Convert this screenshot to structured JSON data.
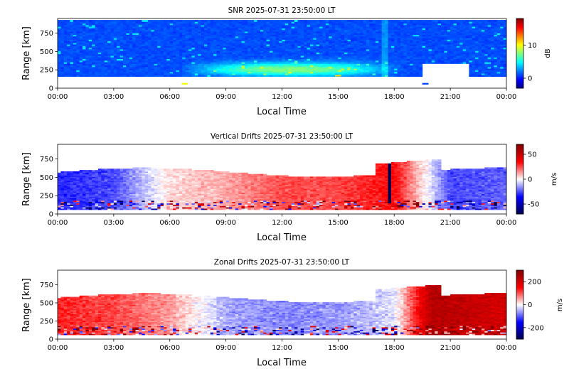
{
  "chart_data": [
    {
      "type": "heatmap",
      "title": "SNR 2025-07-31 23:50:00 LT",
      "xlabel": "Local Time",
      "ylabel": "Range [km]",
      "x_ticks": [
        "00:00",
        "03:00",
        "06:00",
        "09:00",
        "12:00",
        "15:00",
        "18:00",
        "21:00",
        "00:00"
      ],
      "xlim_hours": [
        0,
        24
      ],
      "y_ticks": [
        0,
        250,
        500,
        750
      ],
      "ylim": [
        0,
        950
      ],
      "colormap": "jet",
      "colorbar": {
        "label": "dB",
        "range": [
          -3,
          18
        ],
        "ticks": [
          0,
          10
        ]
      },
      "valid_range_km": [
        160,
        930
      ],
      "summary": "Mostly 0–3 dB across range; enhanced band of 6–9 dB near 170–450 km between 07:00 and 18:00; data gap below ~330 km from 19:30 to 22:00.",
      "notable_cells": [
        {
          "time": "06:48",
          "range_km": 60,
          "snr_db": 10
        },
        {
          "time": "19:40",
          "range_km": 60,
          "snr_db": 1
        },
        {
          "time": "15:00",
          "range_km": 170,
          "snr_db": 11
        }
      ]
    },
    {
      "type": "heatmap",
      "title": "Vertical Drifts 2025-07-31 23:50:00 LT",
      "xlabel": "Local Time",
      "ylabel": "Range [km]",
      "x_ticks": [
        "00:00",
        "03:00",
        "06:00",
        "09:00",
        "12:00",
        "15:00",
        "18:00",
        "21:00",
        "00:00"
      ],
      "xlim_hours": [
        0,
        24
      ],
      "y_ticks": [
        0,
        250,
        500,
        750
      ],
      "ylim": [
        0,
        950
      ],
      "colormap": "seismic",
      "colorbar": {
        "label": "m/s",
        "range": [
          -70,
          70
        ],
        "ticks": [
          -50,
          0,
          50
        ]
      },
      "summary": "Negative (downward, ~-30 m/s) drifts before 06:00; positive (~+20 to +30 m/s) drifts between 06:00 and 19:00 with peak near 18:00; negative again after 19:30 (~-25 m/s). Strong negative column near 17:45.",
      "profile": [
        {
          "time": "00:00",
          "drift_ms": -30
        },
        {
          "time": "03:00",
          "drift_ms": -25
        },
        {
          "time": "06:00",
          "drift_ms": 5
        },
        {
          "time": "09:00",
          "drift_ms": 12
        },
        {
          "time": "12:00",
          "drift_ms": 25
        },
        {
          "time": "15:00",
          "drift_ms": 25
        },
        {
          "time": "18:00",
          "drift_ms": 35
        },
        {
          "time": "21:00",
          "drift_ms": -25
        },
        {
          "time": "24:00",
          "drift_ms": -22
        }
      ]
    },
    {
      "type": "heatmap",
      "title": "Zonal Drifts 2025-07-31 23:50:00 LT",
      "xlabel": "Local Time",
      "ylabel": "Range [km]",
      "x_ticks": [
        "00:00",
        "03:00",
        "06:00",
        "09:00",
        "12:00",
        "15:00",
        "18:00",
        "21:00",
        "00:00"
      ],
      "xlim_hours": [
        0,
        24
      ],
      "y_ticks": [
        0,
        250,
        500,
        750
      ],
      "ylim": [
        0,
        950
      ],
      "colormap": "seismic",
      "colorbar": {
        "label": "m/s",
        "range": [
          -300,
          300
        ],
        "ticks": [
          -200,
          0,
          200
        ]
      },
      "summary": "Eastward (positive, ~+120 m/s) before 06:30; westward (negative, ~-60 m/s) from 06:30 to 18:00; strongly eastward (~+220 m/s) after 19:00 peaking near 20:00.",
      "profile": [
        {
          "time": "00:00",
          "drift_ms": 130
        },
        {
          "time": "03:00",
          "drift_ms": 110
        },
        {
          "time": "06:00",
          "drift_ms": 60
        },
        {
          "time": "09:00",
          "drift_ms": -50
        },
        {
          "time": "12:00",
          "drift_ms": -70
        },
        {
          "time": "15:00",
          "drift_ms": -60
        },
        {
          "time": "18:00",
          "drift_ms": -20
        },
        {
          "time": "20:00",
          "drift_ms": 240
        },
        {
          "time": "24:00",
          "drift_ms": 200
        }
      ]
    }
  ]
}
